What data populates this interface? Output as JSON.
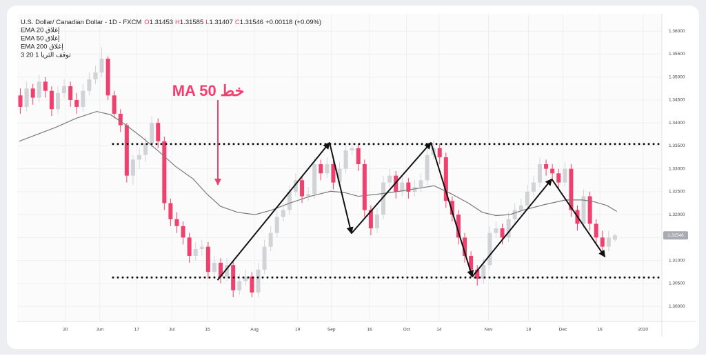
{
  "chart_data": {
    "type": "candlestick",
    "title": "U.S. Dollar/ Canadian Dollar - 1D - FXCM",
    "ohlc_legend": [
      {
        "label": "O",
        "value": 1.31453
      },
      {
        "label": "H",
        "value": 1.31585
      },
      {
        "label": "L",
        "value": 1.31407
      },
      {
        "label": "C",
        "value": 1.31546
      }
    ],
    "change": "+0.00118",
    "change_percent": "(+0.09%)",
    "indicators": [
      "EMA 20 إغلاق",
      "EMA 50 إغلاق",
      "EMA 200 إغلاق",
      "3 20 1 توقف الثريا"
    ],
    "annotation": "خط MA 50",
    "up_color": "#d1d3d6",
    "down_color": "#f0416e",
    "grid": true,
    "xlim": [
      0,
      103
    ],
    "ylim": [
      1.2967,
      1.3638
    ],
    "yticks": [
      {
        "value": 1.36,
        "label": "1.36000"
      },
      {
        "value": 1.355,
        "label": "1.35500"
      },
      {
        "value": 1.35,
        "label": "1.35000"
      },
      {
        "value": 1.345,
        "label": "1.34500"
      },
      {
        "value": 1.34,
        "label": "1.34000"
      },
      {
        "value": 1.335,
        "label": "1.33500"
      },
      {
        "value": 1.33,
        "label": "1.33000"
      },
      {
        "value": 1.325,
        "label": "1.32500"
      },
      {
        "value": 1.32,
        "label": "1.32000"
      },
      {
        "value": 1.315,
        "label": "1.31500"
      },
      {
        "value": 1.31,
        "label": "1.31000"
      },
      {
        "value": 1.305,
        "label": "1.30500"
      },
      {
        "value": 1.3,
        "label": "1.30000"
      }
    ],
    "xticks": [
      {
        "value": 7.7,
        "label": "20"
      },
      {
        "value": 13.2,
        "label": "Jun"
      },
      {
        "value": 19.1,
        "label": "17"
      },
      {
        "value": 24.7,
        "label": "Jul"
      },
      {
        "value": 30.4,
        "label": "15"
      },
      {
        "value": 37.9,
        "label": "Aug"
      },
      {
        "value": 44.8,
        "label": "19"
      },
      {
        "value": 50.2,
        "label": "Sep"
      },
      {
        "value": 56.3,
        "label": "16"
      },
      {
        "value": 62.2,
        "label": "Oct"
      },
      {
        "value": 67.4,
        "label": "14"
      },
      {
        "value": 75.3,
        "label": "Nov"
      },
      {
        "value": 81.7,
        "label": "18"
      },
      {
        "value": 87.2,
        "label": "Dec"
      },
      {
        "value": 93.1,
        "label": "16"
      },
      {
        "value": 100,
        "label": "2020"
      }
    ],
    "candles": [
      [
        1.346,
        1.3475,
        1.342,
        1.3435
      ],
      [
        1.3435,
        1.349,
        1.3425,
        1.3475
      ],
      [
        1.3475,
        1.3485,
        1.344,
        1.3455
      ],
      [
        1.3455,
        1.3505,
        1.3445,
        1.349
      ],
      [
        1.349,
        1.35,
        1.3455,
        1.347
      ],
      [
        1.347,
        1.348,
        1.3415,
        1.343
      ],
      [
        1.343,
        1.348,
        1.342,
        1.3465
      ],
      [
        1.3465,
        1.3495,
        1.3455,
        1.348
      ],
      [
        1.348,
        1.349,
        1.3435,
        1.345
      ],
      [
        1.345,
        1.3465,
        1.342,
        1.3435
      ],
      [
        1.3435,
        1.3485,
        1.3425,
        1.347
      ],
      [
        1.347,
        1.351,
        1.346,
        1.3495
      ],
      [
        1.3495,
        1.3525,
        1.3485,
        1.351
      ],
      [
        1.351,
        1.3565,
        1.35,
        1.354
      ],
      [
        1.354,
        1.3545,
        1.345,
        1.346
      ],
      [
        1.346,
        1.347,
        1.341,
        1.342
      ],
      [
        1.342,
        1.343,
        1.338,
        1.3395
      ],
      [
        1.3395,
        1.34,
        1.327,
        1.3285
      ],
      [
        1.3285,
        1.333,
        1.3265,
        1.332
      ],
      [
        1.332,
        1.3345,
        1.33,
        1.333
      ],
      [
        1.333,
        1.337,
        1.3315,
        1.3355
      ],
      [
        1.3355,
        1.3415,
        1.3345,
        1.34
      ],
      [
        1.34,
        1.341,
        1.3345,
        1.336
      ],
      [
        1.336,
        1.337,
        1.321,
        1.3225
      ],
      [
        1.3225,
        1.3235,
        1.3175,
        1.319
      ],
      [
        1.319,
        1.3205,
        1.316,
        1.3175
      ],
      [
        1.3175,
        1.3185,
        1.3135,
        1.315
      ],
      [
        1.315,
        1.316,
        1.3095,
        1.311
      ],
      [
        1.311,
        1.314,
        1.31,
        1.3125
      ],
      [
        1.3125,
        1.3145,
        1.311,
        1.313
      ],
      [
        1.313,
        1.314,
        1.306,
        1.3075
      ],
      [
        1.3075,
        1.311,
        1.3065,
        1.3095
      ],
      [
        1.3095,
        1.3105,
        1.305,
        1.3065
      ],
      [
        1.3065,
        1.3105,
        1.3055,
        1.309
      ],
      [
        1.309,
        1.31,
        1.302,
        1.3035
      ],
      [
        1.3035,
        1.307,
        1.3025,
        1.3055
      ],
      [
        1.3055,
        1.308,
        1.3045,
        1.3065
      ],
      [
        1.3065,
        1.3075,
        1.302,
        1.303
      ],
      [
        1.303,
        1.3095,
        1.302,
        1.308
      ],
      [
        1.308,
        1.3145,
        1.307,
        1.313
      ],
      [
        1.313,
        1.3175,
        1.312,
        1.316
      ],
      [
        1.316,
        1.321,
        1.315,
        1.3195
      ],
      [
        1.3195,
        1.3225,
        1.3185,
        1.321
      ],
      [
        1.321,
        1.3265,
        1.32,
        1.325
      ],
      [
        1.325,
        1.329,
        1.324,
        1.3275
      ],
      [
        1.3275,
        1.3285,
        1.3225,
        1.324
      ],
      [
        1.324,
        1.326,
        1.323,
        1.3245
      ],
      [
        1.3245,
        1.3325,
        1.3235,
        1.331
      ],
      [
        1.331,
        1.332,
        1.3275,
        1.329
      ],
      [
        1.329,
        1.3325,
        1.328,
        1.331
      ],
      [
        1.331,
        1.332,
        1.3255,
        1.327
      ],
      [
        1.327,
        1.3315,
        1.326,
        1.33
      ],
      [
        1.33,
        1.3355,
        1.329,
        1.334
      ],
      [
        1.334,
        1.336,
        1.333,
        1.3345
      ],
      [
        1.3345,
        1.3355,
        1.3295,
        1.331
      ],
      [
        1.331,
        1.332,
        1.3195,
        1.321
      ],
      [
        1.321,
        1.322,
        1.3155,
        1.317
      ],
      [
        1.317,
        1.3215,
        1.316,
        1.32
      ],
      [
        1.32,
        1.3285,
        1.319,
        1.327
      ],
      [
        1.327,
        1.33,
        1.326,
        1.3285
      ],
      [
        1.3285,
        1.3295,
        1.3235,
        1.325
      ],
      [
        1.325,
        1.3285,
        1.324,
        1.327
      ],
      [
        1.327,
        1.328,
        1.3235,
        1.325
      ],
      [
        1.325,
        1.3275,
        1.324,
        1.326
      ],
      [
        1.326,
        1.329,
        1.325,
        1.3275
      ],
      [
        1.3275,
        1.3345,
        1.3265,
        1.333
      ],
      [
        1.333,
        1.336,
        1.332,
        1.3345
      ],
      [
        1.3345,
        1.3355,
        1.331,
        1.3325
      ],
      [
        1.3325,
        1.3335,
        1.3215,
        1.323
      ],
      [
        1.323,
        1.324,
        1.3185,
        1.32
      ],
      [
        1.32,
        1.321,
        1.3135,
        1.315
      ],
      [
        1.315,
        1.316,
        1.3095,
        1.311
      ],
      [
        1.311,
        1.312,
        1.3065,
        1.308
      ],
      [
        1.308,
        1.309,
        1.3045,
        1.306
      ],
      [
        1.306,
        1.3105,
        1.305,
        1.309
      ],
      [
        1.309,
        1.3175,
        1.308,
        1.316
      ],
      [
        1.316,
        1.3185,
        1.315,
        1.317
      ],
      [
        1.317,
        1.318,
        1.3135,
        1.315
      ],
      [
        1.315,
        1.3205,
        1.314,
        1.319
      ],
      [
        1.319,
        1.3225,
        1.318,
        1.321
      ],
      [
        1.321,
        1.3235,
        1.32,
        1.322
      ],
      [
        1.322,
        1.3265,
        1.321,
        1.325
      ],
      [
        1.325,
        1.3285,
        1.324,
        1.327
      ],
      [
        1.327,
        1.3325,
        1.326,
        1.331
      ],
      [
        1.331,
        1.332,
        1.3285,
        1.33
      ],
      [
        1.33,
        1.331,
        1.3275,
        1.329
      ],
      [
        1.329,
        1.33,
        1.3255,
        1.327
      ],
      [
        1.327,
        1.3315,
        1.326,
        1.33
      ],
      [
        1.33,
        1.331,
        1.3195,
        1.321
      ],
      [
        1.321,
        1.322,
        1.3165,
        1.318
      ],
      [
        1.318,
        1.3255,
        1.317,
        1.324
      ],
      [
        1.324,
        1.325,
        1.3165,
        1.318
      ],
      [
        1.318,
        1.319,
        1.3135,
        1.315
      ],
      [
        1.315,
        1.3165,
        1.3115,
        1.313
      ],
      [
        1.313,
        1.3165,
        1.312,
        1.315
      ],
      [
        1.31453,
        1.31585,
        1.31407,
        1.31546
      ]
    ],
    "ema50": {
      "color": "#7a7a7a",
      "x": [
        0.3,
        6.1,
        9.4,
        12.7,
        14.9,
        17.1,
        19.8,
        22.6,
        25.3,
        28.1,
        30.3,
        32.5,
        35.2,
        38.0,
        40.7,
        43.5,
        46.8,
        50.1,
        52.3,
        54.5,
        57.8,
        61.1,
        64.4,
        66.6,
        69.4,
        72.1,
        74.3,
        76.5,
        78.7,
        80.9,
        84.3,
        87.6,
        90.3,
        91.9,
        94.2,
        95.8
      ],
      "values": [
        1.336,
        1.339,
        1.341,
        1.3425,
        1.3418,
        1.3398,
        1.337,
        1.3338,
        1.3305,
        1.3278,
        1.3245,
        1.3218,
        1.3205,
        1.32,
        1.321,
        1.3225,
        1.324,
        1.3251,
        1.3248,
        1.324,
        1.3245,
        1.3251,
        1.3258,
        1.3263,
        1.3245,
        1.3225,
        1.3205,
        1.3198,
        1.32,
        1.321,
        1.3222,
        1.3232,
        1.3232,
        1.3229,
        1.322,
        1.3207
      ]
    },
    "levels": [
      1.3354,
      1.3063
    ],
    "arrows": {
      "x": [
        32.0,
        49.9,
        53.4,
        66.1,
        72.7,
        85.4,
        93.9
      ],
      "values": [
        1.3057,
        1.3357,
        1.3159,
        1.3357,
        1.30645,
        1.32775,
        1.3108
      ]
    }
  }
}
